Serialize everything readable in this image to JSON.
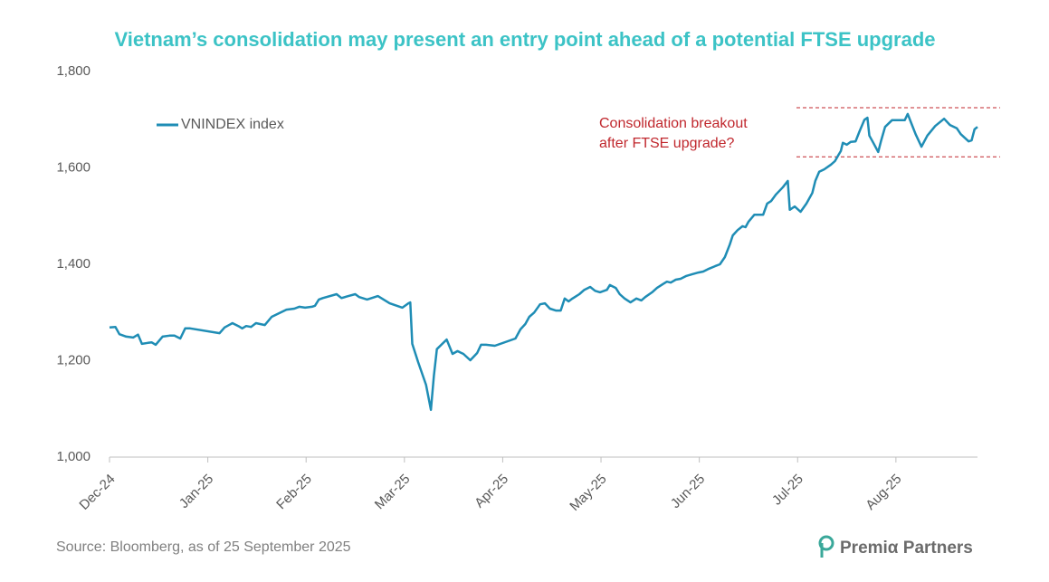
{
  "chart_data": {
    "type": "line",
    "title": "Vietnam’s consolidation may present an entry point ahead of a potential FTSE upgrade",
    "source": "Source: Bloomberg, as of 25 September 2025",
    "logo": "Premiα Partners",
    "annotation": [
      "Consolidation breakout",
      "after FTSE upgrade?"
    ],
    "reference_lines": [
      1725,
      1623
    ],
    "reference_color": "#c0272d",
    "legend": "upper left",
    "xlim": [
      0,
      8.83
    ],
    "ylim": [
      1000,
      1800
    ],
    "yticks": [
      {
        "value": 1000,
        "label": "1,000"
      },
      {
        "value": 1200,
        "label": "1,200"
      },
      {
        "value": 1400,
        "label": "1,400"
      },
      {
        "value": 1600,
        "label": "1,600"
      },
      {
        "value": 1800,
        "label": "1,800"
      }
    ],
    "xticks": [
      {
        "value": 0,
        "label": "Dec-24"
      },
      {
        "value": 1,
        "label": "Jan-25"
      },
      {
        "value": 2,
        "label": "Feb-25"
      },
      {
        "value": 3,
        "label": "Mar-25"
      },
      {
        "value": 4,
        "label": "Apr-25"
      },
      {
        "value": 5,
        "label": "May-25"
      },
      {
        "value": 6,
        "label": "Jun-25"
      },
      {
        "value": 7,
        "label": "Jul-25"
      },
      {
        "value": 8,
        "label": "Aug-25"
      }
    ],
    "x": [
      0,
      0.06,
      0.1,
      0.17,
      0.24,
      0.29,
      0.33,
      0.39,
      0.43,
      0.47,
      0.54,
      0.61,
      0.66,
      0.72,
      0.77,
      0.82,
      1.12,
      1.17,
      1.25,
      1.31,
      1.35,
      1.39,
      1.44,
      1.49,
      1.58,
      1.65,
      1.74,
      1.8,
      1.88,
      1.93,
      1.99,
      2.06,
      2.09,
      2.13,
      2.17,
      2.31,
      2.36,
      2.43,
      2.5,
      2.54,
      2.62,
      2.73,
      2.85,
      2.98,
      3.04,
      3.06,
      3.08,
      3.14,
      3.22,
      3.27,
      3.3,
      3.33,
      3.43,
      3.49,
      3.54,
      3.6,
      3.67,
      3.74,
      3.78,
      3.83,
      3.92,
      4.13,
      4.18,
      4.23,
      4.27,
      4.32,
      4.38,
      4.43,
      4.48,
      4.54,
      4.59,
      4.63,
      4.67,
      4.71,
      4.78,
      4.83,
      4.89,
      4.94,
      4.99,
      5.06,
      5.09,
      5.15,
      5.19,
      5.24,
      5.3,
      5.36,
      5.41,
      5.45,
      5.52,
      5.57,
      5.63,
      5.67,
      5.71,
      5.76,
      5.81,
      5.87,
      5.92,
      5.99,
      6.04,
      6.1,
      6.16,
      6.21,
      6.26,
      6.31,
      6.34,
      6.39,
      6.44,
      6.47,
      6.5,
      6.56,
      6.6,
      6.65,
      6.69,
      6.73,
      6.78,
      6.85,
      6.9,
      6.92,
      6.97,
      7.03,
      7.09,
      7.15,
      7.18,
      7.22,
      7.27,
      7.34,
      7.38,
      7.41,
      7.44,
      7.46,
      7.5,
      7.54,
      7.59,
      7.63,
      7.68,
      7.71,
      7.73,
      7.77,
      7.82,
      7.85,
      7.89,
      7.96,
      8.09,
      8.12,
      8.16,
      8.2,
      8.26,
      8.32,
      8.4,
      8.49,
      8.55,
      8.62,
      8.66,
      8.74,
      8.77,
      8.8,
      8.83
    ],
    "series": [
      {
        "name": "VNINDEX index",
        "color": "#1f8db5",
        "values": [
          1269,
          1270,
          1255,
          1250,
          1248,
          1254,
          1235,
          1237,
          1238,
          1233,
          1250,
          1252,
          1252,
          1246,
          1267,
          1267,
          1257,
          1269,
          1278,
          1272,
          1267,
          1272,
          1270,
          1278,
          1274,
          1291,
          1300,
          1306,
          1308,
          1312,
          1310,
          1312,
          1314,
          1327,
          1330,
          1338,
          1330,
          1334,
          1338,
          1332,
          1327,
          1334,
          1319,
          1310,
          1319,
          1321,
          1235,
          1197,
          1150,
          1098,
          1169,
          1224,
          1244,
          1214,
          1220,
          1214,
          1201,
          1216,
          1233,
          1233,
          1231,
          1246,
          1265,
          1276,
          1291,
          1300,
          1317,
          1319,
          1308,
          1304,
          1304,
          1329,
          1323,
          1329,
          1338,
          1347,
          1353,
          1345,
          1342,
          1347,
          1357,
          1351,
          1338,
          1329,
          1321,
          1329,
          1325,
          1332,
          1342,
          1351,
          1359,
          1364,
          1362,
          1368,
          1370,
          1376,
          1379,
          1383,
          1385,
          1391,
          1396,
          1400,
          1415,
          1441,
          1460,
          1471,
          1479,
          1477,
          1488,
          1503,
          1503,
          1503,
          1526,
          1531,
          1545,
          1560,
          1573,
          1513,
          1520,
          1509,
          1526,
          1548,
          1573,
          1592,
          1597,
          1607,
          1614,
          1625,
          1635,
          1652,
          1648,
          1654,
          1655,
          1676,
          1700,
          1704,
          1667,
          1652,
          1633,
          1657,
          1685,
          1699,
          1699,
          1712,
          1691,
          1670,
          1644,
          1667,
          1687,
          1702,
          1689,
          1682,
          1670,
          1655,
          1657,
          1680,
          1685
        ]
      }
    ]
  }
}
